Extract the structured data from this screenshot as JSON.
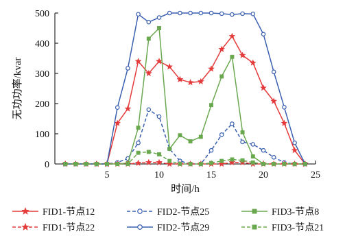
{
  "chart_data": {
    "type": "line",
    "xlabel": "时间/h",
    "ylabel": "无功功率/kvar",
    "xlim": [
      0,
      25
    ],
    "ylim": [
      0,
      500
    ],
    "xticks": [
      5,
      10,
      15,
      20,
      25
    ],
    "yticks": [
      0,
      100,
      200,
      300,
      400,
      500
    ],
    "x": [
      1,
      2,
      3,
      4,
      5,
      6,
      7,
      8,
      9,
      10,
      11,
      12,
      13,
      14,
      15,
      16,
      17,
      18,
      19,
      20,
      21,
      22,
      23,
      24
    ],
    "legend_position": "bottom",
    "series": [
      {
        "name": "FID1-节点12",
        "color": "#e53a3a",
        "dash": "solid",
        "marker": "star",
        "values": [
          0,
          0,
          0,
          0,
          0,
          135,
          183,
          340,
          300,
          340,
          322,
          280,
          270,
          273,
          315,
          380,
          423,
          360,
          335,
          252,
          208,
          135,
          45,
          0
        ]
      },
      {
        "name": "FID2-节点25",
        "color": "#3a5fb0",
        "dash": "dashed",
        "marker": "circle",
        "values": [
          0,
          0,
          0,
          0,
          0,
          5,
          18,
          70,
          180,
          157,
          50,
          10,
          0,
          0,
          45,
          97,
          133,
          73,
          65,
          45,
          22,
          5,
          0,
          0
        ]
      },
      {
        "name": "FID3-节点8",
        "color": "#6aa84f",
        "dash": "solid",
        "marker": "square",
        "values": [
          0,
          0,
          0,
          0,
          0,
          0,
          3,
          120,
          415,
          450,
          50,
          95,
          75,
          90,
          195,
          290,
          355,
          105,
          25,
          0,
          0,
          0,
          0,
          0
        ]
      },
      {
        "name": "FID1-节点22",
        "color": "#e53a3a",
        "dash": "dashed",
        "marker": "star",
        "values": [
          0,
          0,
          0,
          0,
          0,
          0,
          0,
          3,
          5,
          5,
          0,
          0,
          0,
          0,
          0,
          0,
          5,
          5,
          0,
          0,
          0,
          0,
          0,
          0
        ]
      },
      {
        "name": "FID2-节点29",
        "color": "#3a5fb0",
        "dash": "solid",
        "marker": "circle",
        "values": [
          0,
          0,
          0,
          0,
          0,
          187,
          317,
          496,
          470,
          485,
          500,
          500,
          500,
          500,
          500,
          498,
          495,
          498,
          497,
          430,
          305,
          188,
          70,
          0
        ]
      },
      {
        "name": "FID3-节点21",
        "color": "#6aa84f",
        "dash": "dashed",
        "marker": "square",
        "values": [
          0,
          0,
          0,
          0,
          0,
          0,
          0,
          37,
          40,
          32,
          10,
          0,
          0,
          0,
          3,
          10,
          15,
          12,
          5,
          0,
          0,
          0,
          0,
          0
        ]
      }
    ]
  }
}
